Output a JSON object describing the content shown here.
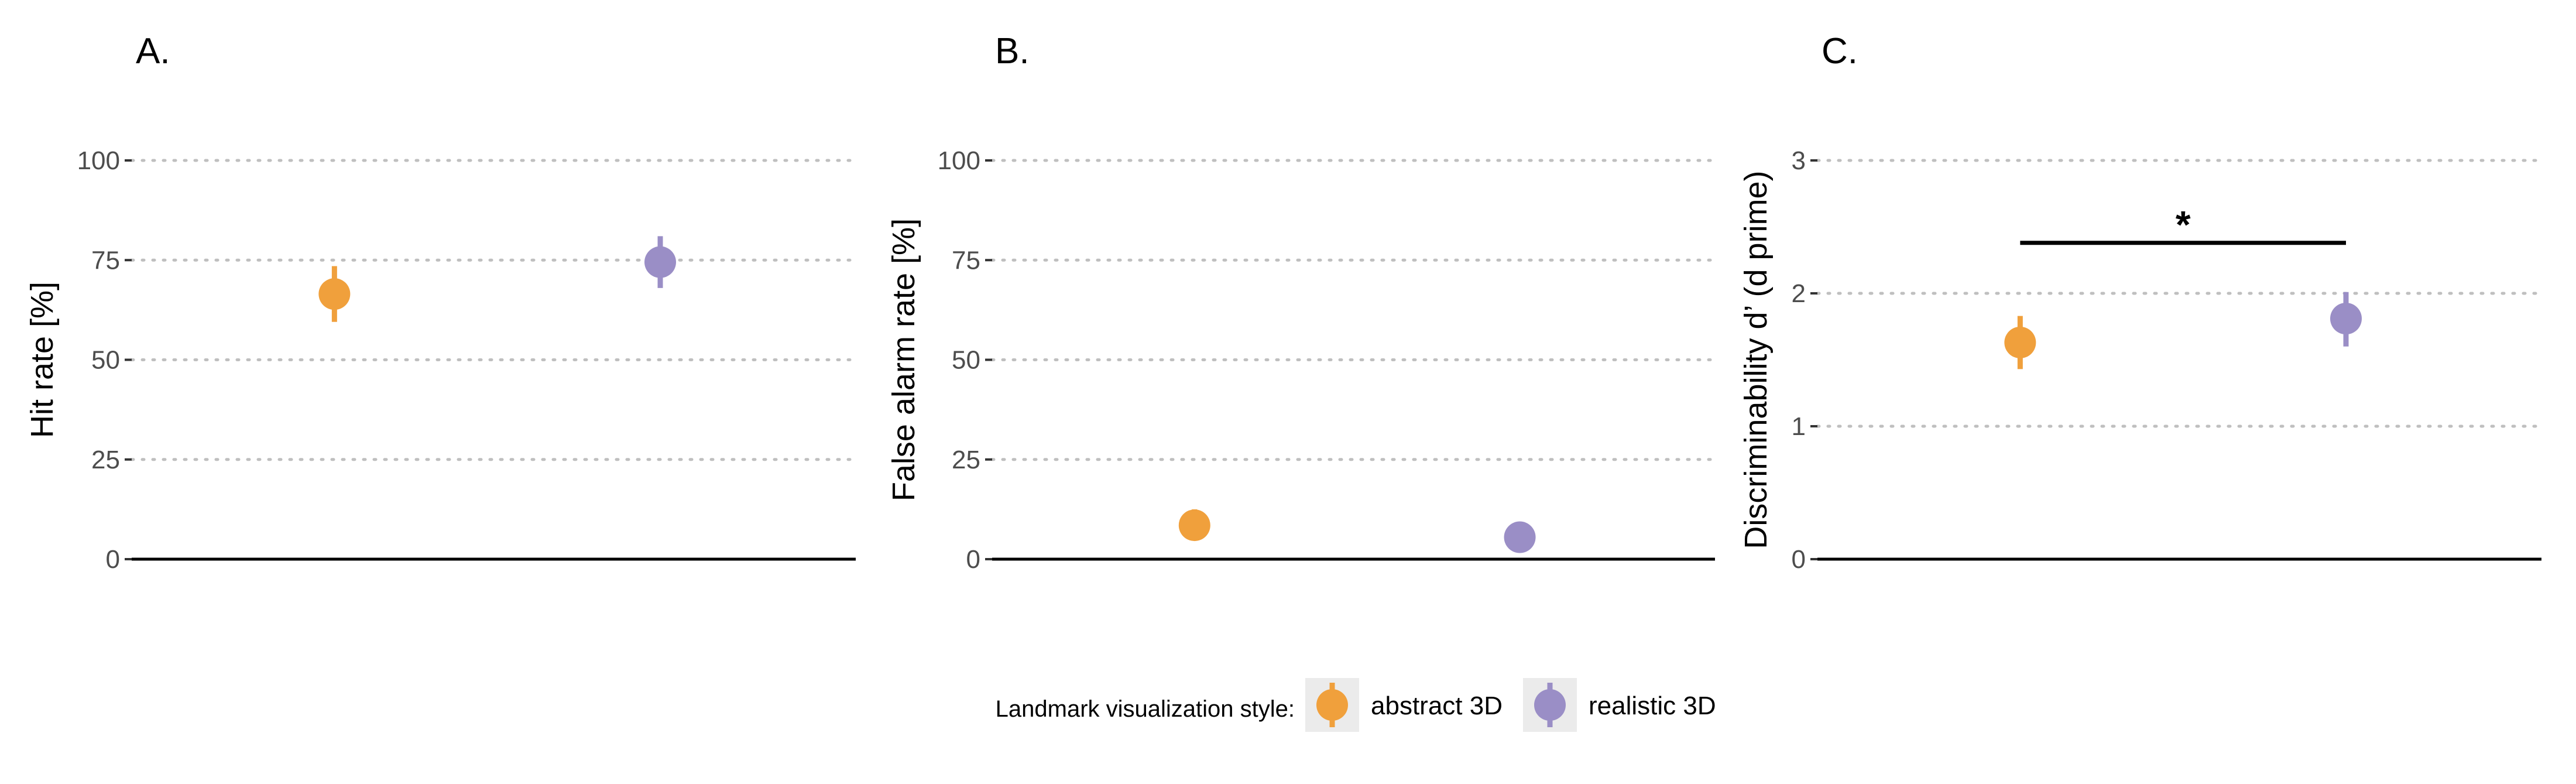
{
  "legend": {
    "title": "Landmark visualization style:",
    "entries": [
      {
        "label": "abstract 3D",
        "color": "#f0a03c"
      },
      {
        "label": "realistic 3D",
        "color": "#9a8ec6"
      }
    ]
  },
  "chart_data": [
    {
      "type": "scatter",
      "panel_letter": "A.",
      "ylabel": "Hit rate [%]",
      "xlabel": "",
      "ylim": [
        0,
        100
      ],
      "yticks": [
        0,
        25,
        50,
        75,
        100
      ],
      "grid": true,
      "significance": null,
      "series": [
        {
          "name": "abstract 3D",
          "value": 66.5,
          "lower": 59.5,
          "upper": 73.5
        },
        {
          "name": "realistic 3D",
          "value": 74.5,
          "lower": 68,
          "upper": 81
        }
      ]
    },
    {
      "type": "scatter",
      "panel_letter": "B.",
      "ylabel": "False alarm rate [%]",
      "xlabel": "",
      "ylim": [
        0,
        100
      ],
      "yticks": [
        0,
        25,
        50,
        75,
        100
      ],
      "grid": true,
      "significance": null,
      "series": [
        {
          "name": "abstract 3D",
          "value": 8.5,
          "lower": 5,
          "upper": 12.5
        },
        {
          "name": "realistic 3D",
          "value": 5.5,
          "lower": 3.5,
          "upper": 8
        }
      ]
    },
    {
      "type": "scatter",
      "panel_letter": "C.",
      "ylabel": "Discriminability d’ (d prime)",
      "xlabel": "",
      "ylim": [
        0,
        3
      ],
      "yticks": [
        0,
        1,
        2,
        3
      ],
      "grid": true,
      "significance": {
        "label": "*",
        "y": 2.38
      },
      "series": [
        {
          "name": "abstract 3D",
          "value": 1.63,
          "lower": 1.43,
          "upper": 1.83
        },
        {
          "name": "realistic 3D",
          "value": 1.81,
          "lower": 1.6,
          "upper": 2.01
        }
      ]
    }
  ]
}
